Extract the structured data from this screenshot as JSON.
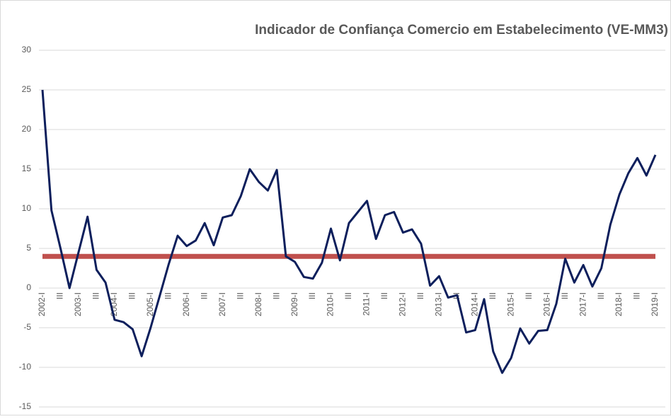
{
  "chart_data": {
    "type": "line",
    "title": "Indicador de Confiança Comercio em Estabelecimento (VE-MM3)",
    "categories": [
      "2002-I",
      null,
      "III",
      null,
      "2003-I",
      null,
      "III",
      null,
      "2004-I",
      null,
      "III",
      null,
      "2005-I",
      null,
      "III",
      null,
      "2006-I",
      null,
      "III",
      null,
      "2007-I",
      null,
      "III",
      null,
      "2008-I",
      null,
      "III",
      null,
      "2009-I",
      null,
      "III",
      null,
      "2010-I",
      null,
      "III",
      null,
      "2011-I",
      null,
      "III",
      null,
      "2012-I",
      null,
      "III",
      null,
      "2013-I",
      null,
      "III",
      null,
      "2014-I",
      null,
      "III",
      null,
      "2015-I",
      null,
      "III",
      null,
      "2016-I",
      null,
      "III",
      null,
      "2017-I",
      null,
      "III",
      null,
      "2018-I",
      null,
      "III",
      null,
      "2019-I"
    ],
    "values": [
      25,
      9.8,
      5,
      0,
      4.5,
      9,
      2.3,
      0.7,
      -4,
      -4.3,
      -5.2,
      -8.6,
      -5,
      -1,
      3,
      6.6,
      5.3,
      6,
      8.2,
      5.4,
      8.9,
      9.2,
      11.6,
      15,
      13.4,
      12.3,
      14.9,
      4,
      3.3,
      1.4,
      1.2,
      3.2,
      7.5,
      3.5,
      8.2,
      9.6,
      11,
      6.2,
      9.2,
      9.6,
      7,
      7.4,
      5.6,
      0.3,
      1.5,
      -1.2,
      -0.9,
      -5.6,
      -5.3,
      -1.4,
      -8,
      -10.7,
      -8.8,
      -5.1,
      -7,
      -5.4,
      -5.3,
      -2,
      3.7,
      0.7,
      2.9,
      0.2,
      2.5,
      8,
      11.8,
      14.5,
      16.4,
      14.2,
      16.8
    ],
    "color": "#0d1f5c",
    "reference_line": {
      "value": 4,
      "color": "#c0504d"
    },
    "ylim": [
      -15,
      30
    ],
    "yticks": [
      -15,
      -10,
      -5,
      0,
      5,
      10,
      15,
      20,
      25,
      30
    ],
    "grid": true
  }
}
